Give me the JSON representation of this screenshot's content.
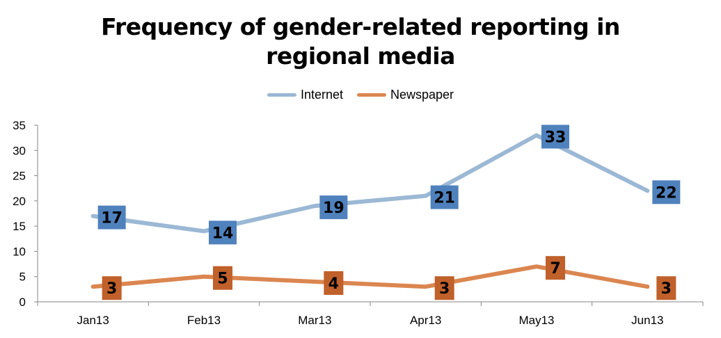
{
  "chart_data": {
    "type": "line",
    "title_lines": [
      "Frequency of gender-related reporting in",
      "regional media"
    ],
    "categories": [
      "Jan13",
      "Feb13",
      "Mar13",
      "Apr13",
      "May13",
      "Jun13"
    ],
    "series": [
      {
        "name": "Internet",
        "values": [
          17,
          14,
          19,
          21,
          33,
          22
        ],
        "color": "#9bb8d4",
        "label_color": "#4f81bd"
      },
      {
        "name": "Newspaper",
        "values": [
          3,
          5,
          4,
          3,
          7,
          3
        ],
        "color": "#db8650",
        "label_color": "#c0602a"
      }
    ],
    "ylim": [
      0,
      35
    ],
    "yticks": [
      0,
      5,
      10,
      15,
      20,
      25,
      30,
      35
    ],
    "legend_position": "top",
    "grid": false
  }
}
